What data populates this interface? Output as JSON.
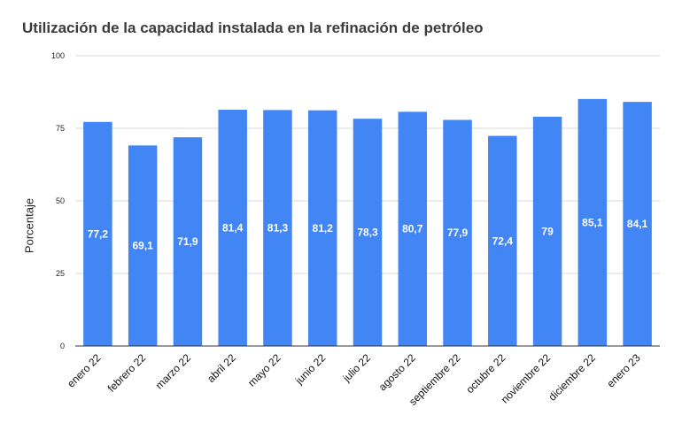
{
  "chart_data": {
    "type": "bar",
    "title": "Utilización de la capacidad instalada en la refinación de petróleo",
    "xlabel": "",
    "ylabel": "Porcentaje",
    "ylim": [
      0,
      100
    ],
    "yticks": [
      0,
      25,
      50,
      75,
      100
    ],
    "grid": true,
    "categories": [
      "enero 22",
      "febrero 22",
      "marzo 22",
      "abril 22",
      "mayo 22",
      "junio 22",
      "julio 22",
      "agosto 22",
      "septiembre 22",
      "octubre 22",
      "noviembre 22",
      "diciembre 22",
      "enero 23"
    ],
    "values": [
      77.2,
      69.1,
      71.9,
      81.4,
      81.3,
      81.2,
      78.3,
      80.7,
      77.9,
      72.4,
      79,
      85.1,
      84.1
    ],
    "data_labels": [
      "77,2",
      "69,1",
      "71,9",
      "81,4",
      "81,3",
      "81,2",
      "78,3",
      "80,7",
      "77,9",
      "72,4",
      "79",
      "85,1",
      "84,1"
    ],
    "bar_color": "#4285f4",
    "grid_color": "#d9d9d9",
    "axis_color": "#333333"
  }
}
